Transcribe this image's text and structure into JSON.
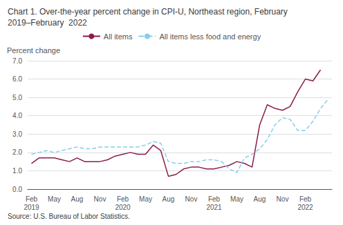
{
  "chart_data": {
    "type": "line",
    "title": "Chart 1. Over-the-year percent change in CPI-U, Northeast region, February\n2019–February  2022",
    "ylabel": "Percent change",
    "annotations": [
      "Source: U.S. Bureau of Labor Statistics."
    ],
    "categories": [
      "Feb\n2019",
      null,
      null,
      "May",
      null,
      null,
      "Aug",
      null,
      null,
      "Nov",
      null,
      null,
      "Feb\n2020",
      null,
      null,
      "May",
      null,
      null,
      "Aug",
      null,
      null,
      "Nov",
      null,
      null,
      "Feb\n2021",
      null,
      null,
      "May",
      null,
      null,
      "Aug",
      null,
      null,
      "Nov",
      null,
      null,
      "Feb\n2022",
      null,
      null,
      null
    ],
    "series": [
      {
        "name": "All items",
        "color": "#8B1A4A",
        "line_style": "solid",
        "values": [
          1.4,
          1.7,
          1.7,
          1.7,
          1.6,
          1.5,
          1.7,
          1.5,
          1.5,
          1.5,
          1.6,
          1.8,
          1.9,
          2.0,
          1.9,
          1.9,
          2.4,
          2.1,
          0.7,
          0.8,
          1.1,
          1.2,
          1.2,
          1.1,
          1.1,
          1.2,
          1.3,
          1.5,
          1.4,
          1.2,
          3.5,
          4.6,
          4.4,
          4.3,
          4.5,
          5.3,
          6.0,
          5.9,
          6.5,
          null
        ]
      },
      {
        "name": "All items less food and energy",
        "color": "#87CEEB",
        "line_style": "dashed",
        "values": [
          1.9,
          2.0,
          2.1,
          2.0,
          2.1,
          2.2,
          2.3,
          2.2,
          2.2,
          2.3,
          2.3,
          2.3,
          2.3,
          2.3,
          2.3,
          2.4,
          2.6,
          2.5,
          1.5,
          1.4,
          1.4,
          1.5,
          1.5,
          1.6,
          1.6,
          1.5,
          1.1,
          0.9,
          1.7,
          1.9,
          2.2,
          2.7,
          3.5,
          3.9,
          3.8,
          3.2,
          3.2,
          3.7,
          4.4,
          4.9
        ]
      }
    ],
    "ylim": [
      0.0,
      7.0
    ],
    "yticks": [
      {
        "value": 0,
        "label": "0.0"
      },
      {
        "value": 1,
        "label": "1.0"
      },
      {
        "value": 2,
        "label": "2.0"
      },
      {
        "value": 3,
        "label": "3.0"
      },
      {
        "value": 4,
        "label": "4.0"
      },
      {
        "value": 5,
        "label": "5.0"
      },
      {
        "value": 6,
        "label": "6.0"
      },
      {
        "value": 7,
        "label": "7.0"
      }
    ],
    "grid": true,
    "legend": "top"
  }
}
